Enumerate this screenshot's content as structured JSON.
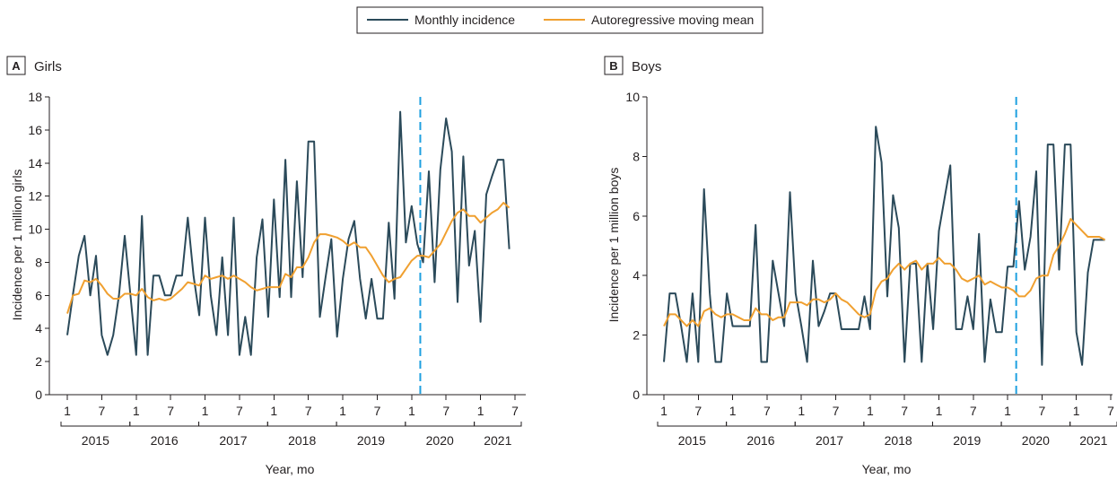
{
  "colors": {
    "monthly": "#2b4a5a",
    "moving_mean": "#f0a030",
    "event_line": "#1ea0e0",
    "axis": "#231f20"
  },
  "legend": {
    "items": [
      {
        "label": "Monthly incidence",
        "color": "#2b4a5a"
      },
      {
        "label": "Autoregressive moving mean",
        "color": "#f0a030"
      }
    ]
  },
  "chart_data": [
    {
      "type": "line",
      "panel_letter": "A",
      "title": "Girls",
      "xlabel": "Year, mo",
      "ylabel": "Incidence per 1 million girls",
      "ylim": [
        0,
        18
      ],
      "yticks": [
        0,
        2,
        4,
        6,
        8,
        10,
        12,
        14,
        16,
        18
      ],
      "year_groups": [
        "2015",
        "2016",
        "2017",
        "2018",
        "2019",
        "2020",
        "2021"
      ],
      "month_tick_labels": [
        "1",
        "7"
      ],
      "event_line_x": "2020-03",
      "grid": false,
      "series": [
        {
          "name": "Monthly incidence",
          "x_start": "2015-01",
          "values": [
            3.6,
            6.1,
            8.4,
            9.6,
            6.0,
            8.4,
            3.6,
            2.4,
            3.6,
            6.0,
            9.6,
            6.0,
            2.4,
            10.8,
            2.4,
            7.2,
            7.2,
            6.0,
            6.0,
            7.2,
            7.2,
            10.7,
            7.2,
            4.8,
            10.7,
            6.0,
            3.6,
            8.3,
            3.6,
            10.7,
            2.4,
            4.7,
            2.4,
            8.3,
            10.6,
            4.7,
            11.8,
            5.9,
            14.2,
            5.9,
            12.9,
            7.1,
            15.3,
            15.3,
            4.7,
            7.1,
            9.4,
            3.5,
            7.0,
            9.4,
            10.5,
            7.0,
            4.6,
            7.0,
            4.6,
            4.6,
            10.4,
            5.8,
            17.1,
            9.2,
            11.4,
            9.1,
            8.0,
            13.5,
            6.8,
            13.6,
            16.7,
            14.7,
            5.6,
            14.4,
            7.8,
            9.9,
            4.4,
            12.1,
            13.2,
            14.2,
            14.2,
            8.8
          ]
        },
        {
          "name": "Autoregressive moving mean",
          "x_start": "2015-01",
          "values": [
            4.9,
            6.0,
            6.1,
            6.9,
            6.8,
            7.0,
            6.6,
            6.1,
            5.8,
            5.8,
            6.1,
            6.1,
            6.0,
            6.4,
            5.9,
            5.7,
            5.8,
            5.7,
            5.8,
            6.1,
            6.4,
            6.8,
            6.7,
            6.6,
            7.2,
            7.0,
            7.1,
            7.2,
            7.0,
            7.2,
            7.0,
            6.8,
            6.5,
            6.3,
            6.4,
            6.5,
            6.5,
            6.5,
            7.3,
            7.1,
            7.7,
            7.7,
            8.3,
            9.2,
            9.7,
            9.7,
            9.6,
            9.5,
            9.3,
            9.0,
            9.2,
            8.9,
            8.9,
            8.4,
            7.8,
            7.2,
            6.8,
            7.0,
            7.1,
            7.6,
            8.1,
            8.4,
            8.4,
            8.3,
            8.7,
            9.1,
            9.8,
            10.5,
            11.0,
            11.2,
            10.8,
            10.8,
            10.4,
            10.7,
            11.0,
            11.2,
            11.6,
            11.3
          ]
        }
      ]
    },
    {
      "type": "line",
      "panel_letter": "B",
      "title": "Boys",
      "xlabel": "Year, mo",
      "ylabel": "Incidence per 1 million boys",
      "ylim": [
        0,
        10
      ],
      "yticks": [
        0,
        2,
        4,
        6,
        8,
        10
      ],
      "year_groups": [
        "2015",
        "2016",
        "2017",
        "2018",
        "2019",
        "2020",
        "2021"
      ],
      "month_tick_labels": [
        "1",
        "7"
      ],
      "event_line_x": "2020-03",
      "grid": false,
      "series": [
        {
          "name": "Monthly incidence",
          "x_start": "2015-01",
          "values": [
            1.1,
            3.4,
            3.4,
            2.3,
            1.1,
            3.4,
            1.1,
            6.9,
            3.4,
            1.1,
            1.1,
            3.4,
            2.3,
            2.3,
            2.3,
            2.3,
            5.7,
            1.1,
            1.1,
            4.5,
            3.4,
            2.3,
            6.8,
            3.4,
            2.3,
            1.1,
            4.5,
            2.3,
            2.8,
            3.4,
            3.4,
            2.2,
            2.2,
            2.2,
            2.2,
            3.3,
            2.2,
            9.0,
            7.8,
            3.3,
            6.7,
            5.6,
            1.1,
            4.4,
            4.4,
            1.1,
            4.4,
            2.2,
            5.5,
            6.6,
            7.7,
            2.2,
            2.2,
            3.3,
            2.2,
            5.4,
            1.1,
            3.2,
            2.1,
            2.1,
            4.3,
            4.3,
            6.5,
            4.2,
            5.3,
            7.5,
            1.0,
            8.4,
            8.4,
            4.2,
            8.4,
            8.4,
            2.1,
            1.0,
            4.1,
            5.2,
            5.2,
            5.2
          ]
        },
        {
          "name": "Autoregressive moving mean",
          "x_start": "2015-01",
          "values": [
            2.3,
            2.7,
            2.7,
            2.5,
            2.3,
            2.5,
            2.3,
            2.8,
            2.9,
            2.7,
            2.6,
            2.7,
            2.7,
            2.6,
            2.5,
            2.5,
            2.9,
            2.7,
            2.7,
            2.5,
            2.6,
            2.6,
            3.1,
            3.1,
            3.1,
            3.0,
            3.2,
            3.2,
            3.1,
            3.2,
            3.4,
            3.2,
            3.1,
            2.9,
            2.7,
            2.6,
            2.7,
            3.5,
            3.8,
            3.9,
            4.2,
            4.4,
            4.2,
            4.4,
            4.5,
            4.2,
            4.4,
            4.4,
            4.6,
            4.4,
            4.4,
            4.2,
            3.9,
            3.8,
            3.9,
            4.0,
            3.7,
            3.8,
            3.7,
            3.6,
            3.6,
            3.5,
            3.3,
            3.3,
            3.5,
            3.9,
            4.0,
            4.0,
            4.7,
            5.0,
            5.4,
            5.9,
            5.7,
            5.5,
            5.3,
            5.3,
            5.3,
            5.2
          ]
        }
      ]
    }
  ]
}
